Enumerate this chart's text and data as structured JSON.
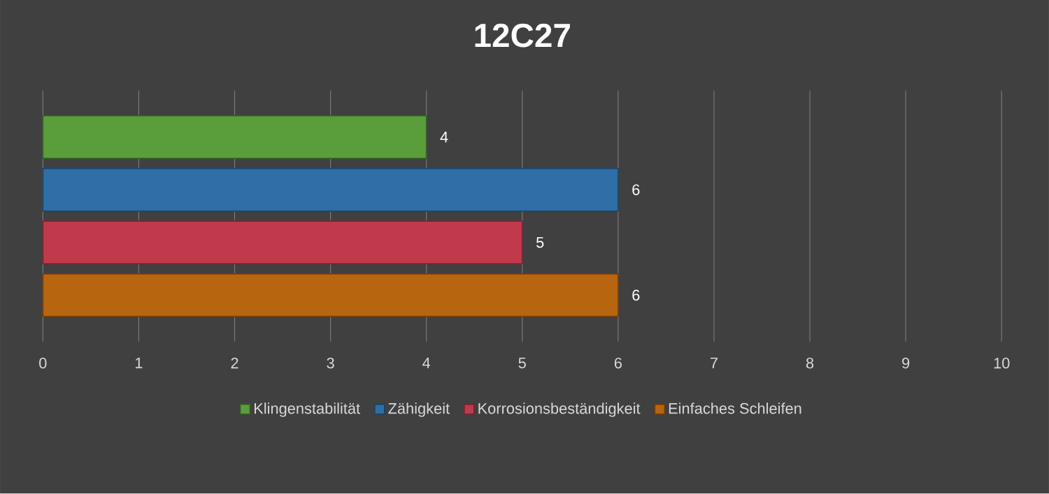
{
  "chart_data": {
    "type": "bar",
    "title": "12C27",
    "orientation": "horizontal",
    "categories": [
      null
    ],
    "series": [
      {
        "name": "Klingenstabilität",
        "color": "#5a9e3c",
        "values": [
          4
        ]
      },
      {
        "name": "Zähigkeit",
        "color": "#2f6ea6",
        "values": [
          6
        ]
      },
      {
        "name": "Korrosionsbeständigkeit",
        "color": "#c03a4c",
        "values": [
          5
        ]
      },
      {
        "name": "Einfaches Schleifen",
        "color": "#b8650f",
        "values": [
          6
        ]
      }
    ],
    "xlim": [
      0,
      10
    ],
    "xticks": [
      0,
      1,
      2,
      3,
      4,
      5,
      6,
      7,
      8,
      9,
      10
    ],
    "grid": "x",
    "legend": "bottom",
    "data_labels": true
  }
}
